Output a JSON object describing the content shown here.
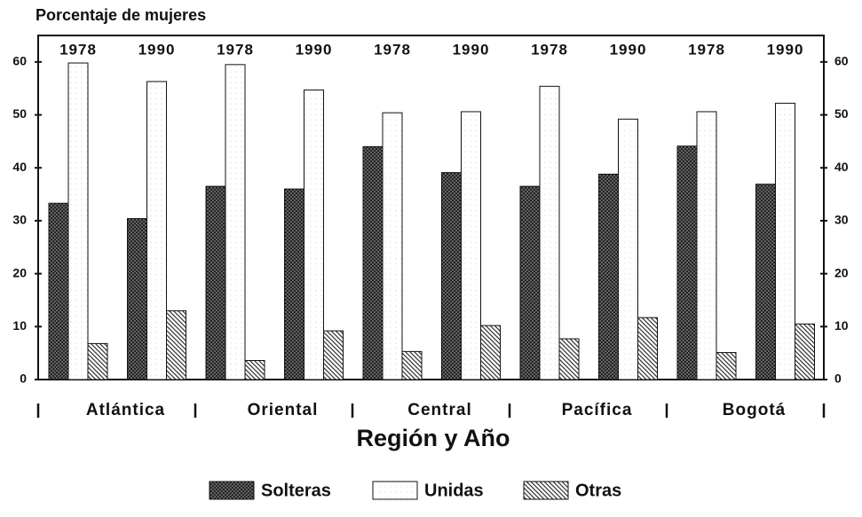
{
  "chart_data": {
    "type": "bar",
    "title": "Porcentaje de mujeres",
    "x_label": "Región y Año",
    "categories": [
      "1978",
      "1990",
      "1978",
      "1990",
      "1978",
      "1990",
      "1978",
      "1990",
      "1978",
      "1990"
    ],
    "groups": [
      "Atlántica",
      "Oriental",
      "Central",
      "Pacífica",
      "Bogotá"
    ],
    "series": [
      {
        "name": "Solteras",
        "color": "#3a3a3a",
        "values": [
          33.3,
          30.4,
          36.5,
          36.0,
          44.0,
          39.1,
          36.5,
          38.8,
          44.1,
          36.9
        ]
      },
      {
        "name": "Unidas",
        "color": "#ffffff",
        "values": [
          59.8,
          56.3,
          59.5,
          54.7,
          50.4,
          50.6,
          55.4,
          49.2,
          50.6,
          52.2
        ]
      },
      {
        "name": "Otras",
        "color": "#444444",
        "values": [
          6.8,
          13.0,
          3.6,
          9.2,
          5.3,
          10.2,
          7.7,
          11.7,
          5.1,
          10.5
        ]
      }
    ],
    "ylim": [
      0,
      65
    ],
    "yticks": [
      0,
      10,
      20,
      30,
      40,
      50,
      60
    ],
    "y2lim": [
      0,
      65
    ],
    "y2ticks": [
      0,
      10,
      20,
      30,
      40,
      50,
      60
    ],
    "legend": "bottom"
  }
}
